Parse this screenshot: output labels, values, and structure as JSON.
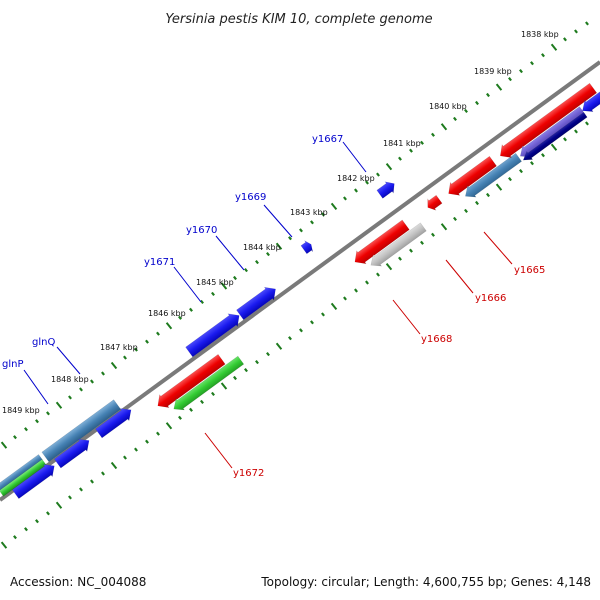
{
  "title": "Yersinia pestis KIM 10, complete genome",
  "footer": {
    "accession": "Accession: NC_004088",
    "topology": "Topology: circular; Length: 4,600,755 bp; Genes: 4,148"
  },
  "colors": {
    "backbone": "#7a7a7a",
    "ticks": "#1e7b1e",
    "label_blue": "#0000cc",
    "label_red": "#cc0000",
    "gene_red": "#ee0000",
    "gene_blue": "#1a1aee",
    "gene_steel": "#4682b4",
    "gene_green": "#33cc33",
    "gene_gray": "#bbbbbb",
    "gene_navy": "#000088",
    "gene_slate": "#6a5acd"
  },
  "scale_labels": [
    "1838 kbp",
    "1839 kbp",
    "1840 kbp",
    "1841 kbp",
    "1842 kbp",
    "1843 kbp",
    "1844 kbp",
    "1845 kbp",
    "1846 kbp",
    "1847 kbp",
    "1848 kbp",
    "1849 kbp"
  ],
  "gene_labels": [
    {
      "text": "y1667",
      "color": "blue"
    },
    {
      "text": "y1669",
      "color": "blue"
    },
    {
      "text": "y1670",
      "color": "blue"
    },
    {
      "text": "y1671",
      "color": "blue"
    },
    {
      "text": "glnQ",
      "color": "blue"
    },
    {
      "text": "glnP",
      "color": "blue"
    },
    {
      "text": "y1665",
      "color": "red"
    },
    {
      "text": "y1666",
      "color": "red"
    },
    {
      "text": "y1668",
      "color": "red"
    },
    {
      "text": "y1672",
      "color": "red"
    }
  ],
  "features": [
    {
      "name": "y1672",
      "track": "reverse-outer",
      "color": "gene_red"
    },
    {
      "name": "y1672-green",
      "track": "reverse-inner",
      "color": "gene_green"
    },
    {
      "name": "y1671",
      "track": "forward-inner",
      "color": "gene_blue"
    },
    {
      "name": "y1670",
      "track": "forward-inner",
      "color": "gene_blue"
    },
    {
      "name": "y1669",
      "track": "forward-outer",
      "color": "gene_blue"
    },
    {
      "name": "y1668",
      "track": "reverse-outer",
      "color": "gene_red"
    },
    {
      "name": "y1668-gray",
      "track": "reverse-inner",
      "color": "gene_gray"
    },
    {
      "name": "y1667",
      "track": "forward-outer",
      "color": "gene_blue"
    },
    {
      "name": "y1666",
      "track": "reverse-outer",
      "color": "gene_red"
    },
    {
      "name": "y1665",
      "track": "reverse-outer",
      "color": "gene_red"
    },
    {
      "name": "y1665-steel",
      "track": "reverse-inner",
      "color": "gene_steel"
    },
    {
      "name": "glnQ",
      "track": "forward-inner",
      "color": "gene_steel"
    },
    {
      "name": "glnQ-blue",
      "track": "forward-outer",
      "color": "gene_blue"
    },
    {
      "name": "glnP",
      "track": "forward-inner",
      "color": "gene_steel"
    },
    {
      "name": "glnP-green",
      "track": "forward-inner",
      "color": "gene_green"
    },
    {
      "name": "glnP-blue",
      "track": "forward-outer",
      "color": "gene_blue"
    }
  ]
}
